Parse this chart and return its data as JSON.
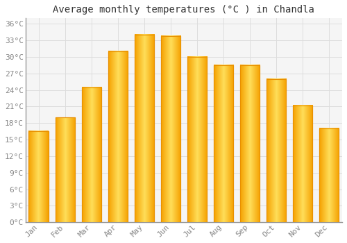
{
  "title": "Average monthly temperatures (°C ) in Chandla",
  "months": [
    "Jan",
    "Feb",
    "Mar",
    "Apr",
    "May",
    "Jun",
    "Jul",
    "Aug",
    "Sep",
    "Oct",
    "Nov",
    "Dec"
  ],
  "values": [
    16.5,
    19.0,
    24.5,
    31.0,
    34.0,
    33.8,
    30.0,
    28.5,
    28.5,
    26.0,
    21.2,
    17.0
  ],
  "bar_color_left": "#F5A800",
  "bar_color_center": "#FFD55A",
  "bar_color_right": "#F5A800",
  "bar_edge_color": "#E89000",
  "background_color": "#ffffff",
  "plot_bg_color": "#f5f5f5",
  "grid_color": "#dddddd",
  "ylim": [
    0,
    37
  ],
  "yticks": [
    0,
    3,
    6,
    9,
    12,
    15,
    18,
    21,
    24,
    27,
    30,
    33,
    36
  ],
  "ytick_labels": [
    "0°C",
    "3°C",
    "6°C",
    "9°C",
    "12°C",
    "15°C",
    "18°C",
    "21°C",
    "24°C",
    "27°C",
    "30°C",
    "33°C",
    "36°C"
  ],
  "tick_color": "#888888",
  "title_fontsize": 10,
  "tick_fontsize": 8,
  "font_family": "monospace",
  "bar_width": 0.75
}
